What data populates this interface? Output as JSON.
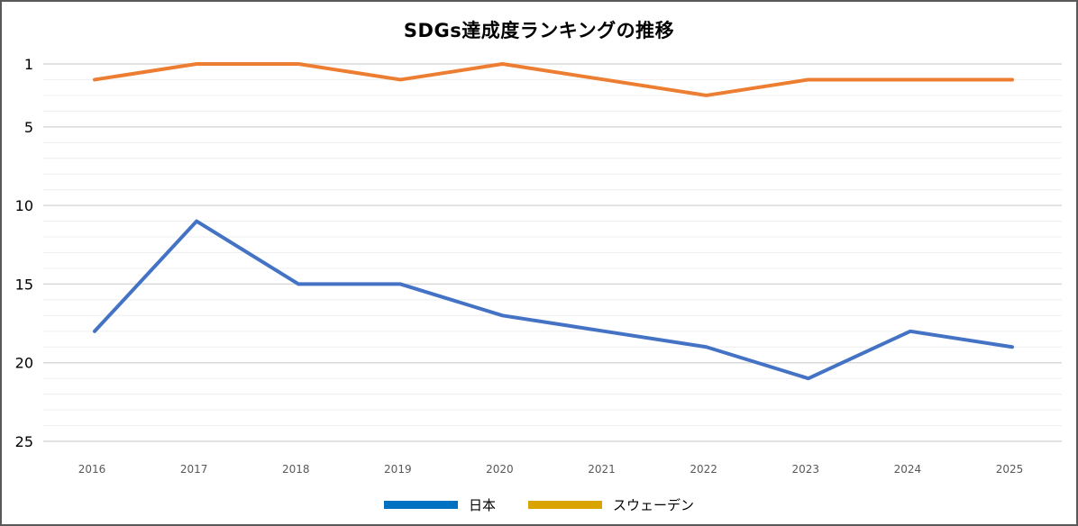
{
  "chart_data": {
    "type": "line",
    "title": "SDGs達成度ランキングの推移",
    "xlabel": "",
    "ylabel": "",
    "x": [
      "2016",
      "2017",
      "2018",
      "2019",
      "2020",
      "2021",
      "2022",
      "2023",
      "2024",
      "2025"
    ],
    "y_inverted": true,
    "ylim": [
      1,
      25
    ],
    "yticks": [
      1,
      5,
      10,
      15,
      20,
      25
    ],
    "grid": true,
    "minor_grid_step": 1,
    "legend_position": "bottom",
    "series": [
      {
        "name": "日本",
        "values": [
          18,
          11,
          15,
          15,
          17,
          18,
          19,
          21,
          18,
          19
        ],
        "line_color": "#4472C4",
        "legend_color": "#0070C0"
      },
      {
        "name": "スウェーデン",
        "values": [
          2,
          1,
          1,
          2,
          1,
          2,
          3,
          2,
          2,
          2
        ],
        "line_color": "#ED7D31",
        "legend_color": "#D9A400"
      }
    ]
  }
}
